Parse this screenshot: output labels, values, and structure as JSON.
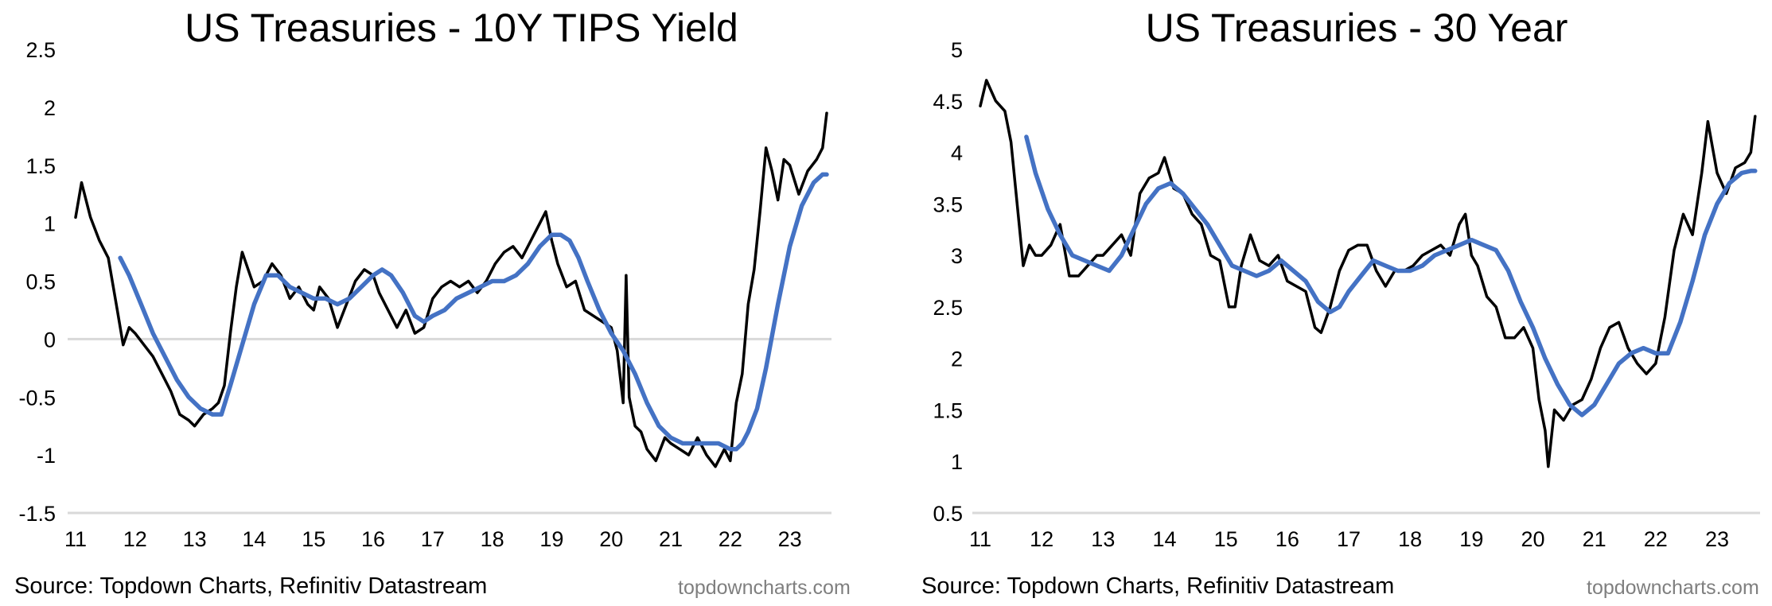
{
  "source_text": "Source: Topdown Charts, Refinitiv Datastream",
  "watermark": "topdowncharts.com",
  "chart_data": [
    {
      "type": "line",
      "title": "US Treasuries - 10Y TIPS Yield",
      "xlabel": "",
      "ylabel": "",
      "xlim": [
        2011.0,
        2023.7
      ],
      "ylim": [
        -1.5,
        2.5
      ],
      "yticks": [
        2.5,
        2,
        1.5,
        1,
        0.5,
        0,
        -0.5,
        -1,
        -1.5
      ],
      "ytick_labels": [
        "2.5",
        "2",
        "1.5",
        "1",
        "0.5",
        "0",
        "-0.5",
        "-1",
        "-1.5"
      ],
      "xticks": [
        2011,
        2012,
        2013,
        2014,
        2015,
        2016,
        2017,
        2018,
        2019,
        2020,
        2021,
        2022,
        2023
      ],
      "xtick_labels": [
        "11",
        "12",
        "13",
        "14",
        "15",
        "16",
        "17",
        "18",
        "19",
        "20",
        "21",
        "22",
        "23"
      ],
      "reference_line": 0,
      "series": [
        {
          "color": "#000000",
          "x": [
            2011.0,
            2011.1,
            2011.25,
            2011.4,
            2011.55,
            2011.7,
            2011.8,
            2011.9,
            2012.0,
            2012.15,
            2012.3,
            2012.45,
            2012.6,
            2012.75,
            2012.9,
            2013.0,
            2013.15,
            2013.3,
            2013.4,
            2013.5,
            2013.6,
            2013.7,
            2013.8,
            2013.9,
            2014.0,
            2014.15,
            2014.3,
            2014.45,
            2014.6,
            2014.75,
            2014.9,
            2015.0,
            2015.1,
            2015.25,
            2015.4,
            2015.55,
            2015.7,
            2015.85,
            2016.0,
            2016.1,
            2016.25,
            2016.4,
            2016.55,
            2016.7,
            2016.85,
            2017.0,
            2017.15,
            2017.3,
            2017.45,
            2017.6,
            2017.75,
            2017.9,
            2018.05,
            2018.2,
            2018.35,
            2018.5,
            2018.65,
            2018.8,
            2018.9,
            2019.0,
            2019.1,
            2019.25,
            2019.4,
            2019.55,
            2019.7,
            2019.85,
            2020.0,
            2020.1,
            2020.2,
            2020.25,
            2020.3,
            2020.4,
            2020.5,
            2020.6,
            2020.75,
            2020.9,
            2021.0,
            2021.15,
            2021.3,
            2021.45,
            2021.6,
            2021.75,
            2021.9,
            2022.0,
            2022.1,
            2022.2,
            2022.3,
            2022.4,
            2022.5,
            2022.6,
            2022.7,
            2022.8,
            2022.9,
            2023.0,
            2023.15,
            2023.3,
            2023.45,
            2023.55,
            2023.62
          ],
          "values": [
            1.05,
            1.35,
            1.05,
            0.85,
            0.7,
            0.25,
            -0.05,
            0.1,
            0.05,
            -0.05,
            -0.15,
            -0.3,
            -0.45,
            -0.65,
            -0.7,
            -0.75,
            -0.65,
            -0.6,
            -0.55,
            -0.4,
            0.05,
            0.45,
            0.75,
            0.6,
            0.45,
            0.5,
            0.65,
            0.55,
            0.35,
            0.45,
            0.3,
            0.25,
            0.45,
            0.35,
            0.1,
            0.3,
            0.5,
            0.6,
            0.55,
            0.4,
            0.25,
            0.1,
            0.25,
            0.05,
            0.1,
            0.35,
            0.45,
            0.5,
            0.45,
            0.5,
            0.4,
            0.5,
            0.65,
            0.75,
            0.8,
            0.7,
            0.85,
            1.0,
            1.1,
            0.85,
            0.65,
            0.45,
            0.5,
            0.25,
            0.2,
            0.15,
            0.1,
            -0.1,
            -0.55,
            0.55,
            -0.5,
            -0.75,
            -0.8,
            -0.95,
            -1.05,
            -0.85,
            -0.9,
            -0.95,
            -1.0,
            -0.85,
            -1.0,
            -1.1,
            -0.95,
            -1.05,
            -0.55,
            -0.3,
            0.3,
            0.6,
            1.1,
            1.65,
            1.45,
            1.2,
            1.55,
            1.5,
            1.25,
            1.45,
            1.55,
            1.65,
            1.95
          ]
        },
        {
          "color": "#4472c4",
          "x": [
            2011.75,
            2011.9,
            2012.1,
            2012.3,
            2012.5,
            2012.7,
            2012.9,
            2013.1,
            2013.3,
            2013.45,
            2013.6,
            2013.8,
            2014.0,
            2014.2,
            2014.4,
            2014.6,
            2014.8,
            2015.0,
            2015.2,
            2015.4,
            2015.6,
            2015.8,
            2016.0,
            2016.15,
            2016.3,
            2016.5,
            2016.7,
            2016.85,
            2017.0,
            2017.2,
            2017.4,
            2017.6,
            2017.8,
            2018.0,
            2018.2,
            2018.4,
            2018.6,
            2018.8,
            2019.0,
            2019.15,
            2019.3,
            2019.45,
            2019.6,
            2019.8,
            2020.0,
            2020.2,
            2020.4,
            2020.6,
            2020.8,
            2021.0,
            2021.2,
            2021.4,
            2021.6,
            2021.8,
            2022.0,
            2022.1,
            2022.2,
            2022.3,
            2022.45,
            2022.6,
            2022.8,
            2023.0,
            2023.2,
            2023.4,
            2023.55,
            2023.62
          ],
          "values": [
            0.7,
            0.55,
            0.3,
            0.05,
            -0.15,
            -0.35,
            -0.5,
            -0.6,
            -0.65,
            -0.65,
            -0.4,
            -0.05,
            0.3,
            0.55,
            0.55,
            0.45,
            0.4,
            0.35,
            0.35,
            0.3,
            0.35,
            0.45,
            0.55,
            0.6,
            0.55,
            0.4,
            0.2,
            0.15,
            0.2,
            0.25,
            0.35,
            0.4,
            0.45,
            0.5,
            0.5,
            0.55,
            0.65,
            0.8,
            0.9,
            0.9,
            0.85,
            0.7,
            0.5,
            0.25,
            0.05,
            -0.1,
            -0.3,
            -0.55,
            -0.75,
            -0.85,
            -0.9,
            -0.9,
            -0.9,
            -0.9,
            -0.95,
            -0.95,
            -0.9,
            -0.8,
            -0.6,
            -0.25,
            0.3,
            0.8,
            1.15,
            1.35,
            1.42,
            1.42
          ]
        }
      ]
    },
    {
      "type": "line",
      "title": "US Treasuries - 30 Year",
      "xlabel": "",
      "ylabel": "",
      "xlim": [
        2011.0,
        2023.7
      ],
      "ylim": [
        0.5,
        5
      ],
      "yticks": [
        5,
        4.5,
        4,
        3.5,
        3,
        2.5,
        2,
        1.5,
        1,
        0.5
      ],
      "ytick_labels": [
        "5",
        "4.5",
        "4",
        "3.5",
        "3",
        "2.5",
        "2",
        "1.5",
        "1",
        "0.5"
      ],
      "xticks": [
        2011,
        2012,
        2013,
        2014,
        2015,
        2016,
        2017,
        2018,
        2019,
        2020,
        2021,
        2022,
        2023
      ],
      "xtick_labels": [
        "11",
        "12",
        "13",
        "14",
        "15",
        "16",
        "17",
        "18",
        "19",
        "20",
        "21",
        "22",
        "23"
      ],
      "series": [
        {
          "color": "#000000",
          "x": [
            2011.0,
            2011.1,
            2011.25,
            2011.4,
            2011.5,
            2011.6,
            2011.7,
            2011.8,
            2011.9,
            2012.0,
            2012.15,
            2012.3,
            2012.45,
            2012.6,
            2012.75,
            2012.9,
            2013.0,
            2013.15,
            2013.3,
            2013.45,
            2013.6,
            2013.75,
            2013.9,
            2014.0,
            2014.15,
            2014.3,
            2014.45,
            2014.6,
            2014.75,
            2014.9,
            2015.05,
            2015.15,
            2015.25,
            2015.4,
            2015.55,
            2015.7,
            2015.85,
            2016.0,
            2016.15,
            2016.3,
            2016.45,
            2016.55,
            2016.7,
            2016.85,
            2017.0,
            2017.15,
            2017.3,
            2017.45,
            2017.6,
            2017.75,
            2017.9,
            2018.05,
            2018.2,
            2018.35,
            2018.5,
            2018.65,
            2018.8,
            2018.9,
            2019.0,
            2019.1,
            2019.25,
            2019.4,
            2019.55,
            2019.7,
            2019.85,
            2020.0,
            2020.1,
            2020.2,
            2020.25,
            2020.35,
            2020.5,
            2020.65,
            2020.8,
            2020.95,
            2021.1,
            2021.25,
            2021.4,
            2021.55,
            2021.7,
            2021.85,
            2022.0,
            2022.15,
            2022.3,
            2022.45,
            2022.6,
            2022.75,
            2022.85,
            2023.0,
            2023.15,
            2023.3,
            2023.45,
            2023.55,
            2023.62
          ],
          "values": [
            4.45,
            4.7,
            4.5,
            4.4,
            4.1,
            3.5,
            2.9,
            3.1,
            3.0,
            3.0,
            3.1,
            3.3,
            2.8,
            2.8,
            2.9,
            3.0,
            3.0,
            3.1,
            3.2,
            3.0,
            3.6,
            3.75,
            3.8,
            3.95,
            3.65,
            3.6,
            3.4,
            3.3,
            3.0,
            2.95,
            2.5,
            2.5,
            2.9,
            3.2,
            2.95,
            2.9,
            3.0,
            2.75,
            2.7,
            2.65,
            2.3,
            2.25,
            2.5,
            2.85,
            3.05,
            3.1,
            3.1,
            2.85,
            2.7,
            2.85,
            2.85,
            2.9,
            3.0,
            3.05,
            3.1,
            3.0,
            3.3,
            3.4,
            3.0,
            2.9,
            2.6,
            2.5,
            2.2,
            2.2,
            2.3,
            2.1,
            1.6,
            1.3,
            0.95,
            1.5,
            1.4,
            1.55,
            1.6,
            1.8,
            2.1,
            2.3,
            2.35,
            2.1,
            1.95,
            1.85,
            1.95,
            2.4,
            3.05,
            3.4,
            3.2,
            3.8,
            4.3,
            3.8,
            3.6,
            3.85,
            3.9,
            4.0,
            4.35
          ]
        },
        {
          "color": "#4472c4",
          "x": [
            2011.75,
            2011.9,
            2012.1,
            2012.3,
            2012.5,
            2012.7,
            2012.9,
            2013.1,
            2013.3,
            2013.5,
            2013.7,
            2013.9,
            2014.1,
            2014.3,
            2014.5,
            2014.7,
            2014.9,
            2015.1,
            2015.3,
            2015.5,
            2015.7,
            2015.9,
            2016.1,
            2016.3,
            2016.5,
            2016.7,
            2016.85,
            2017.0,
            2017.2,
            2017.4,
            2017.6,
            2017.8,
            2018.0,
            2018.2,
            2018.4,
            2018.6,
            2018.8,
            2019.0,
            2019.2,
            2019.4,
            2019.6,
            2019.8,
            2020.0,
            2020.2,
            2020.4,
            2020.6,
            2020.8,
            2021.0,
            2021.2,
            2021.4,
            2021.6,
            2021.8,
            2022.0,
            2022.2,
            2022.4,
            2022.6,
            2022.8,
            2023.0,
            2023.2,
            2023.4,
            2023.55,
            2023.62
          ],
          "values": [
            4.15,
            3.8,
            3.45,
            3.2,
            3.0,
            2.95,
            2.9,
            2.85,
            3.0,
            3.25,
            3.5,
            3.65,
            3.7,
            3.6,
            3.45,
            3.3,
            3.1,
            2.9,
            2.85,
            2.8,
            2.85,
            2.95,
            2.85,
            2.75,
            2.55,
            2.45,
            2.5,
            2.65,
            2.8,
            2.95,
            2.9,
            2.85,
            2.85,
            2.9,
            3.0,
            3.05,
            3.1,
            3.15,
            3.1,
            3.05,
            2.85,
            2.55,
            2.3,
            2.0,
            1.75,
            1.55,
            1.45,
            1.55,
            1.75,
            1.95,
            2.05,
            2.1,
            2.05,
            2.05,
            2.35,
            2.75,
            3.2,
            3.5,
            3.7,
            3.8,
            3.82,
            3.82
          ]
        }
      ]
    }
  ]
}
